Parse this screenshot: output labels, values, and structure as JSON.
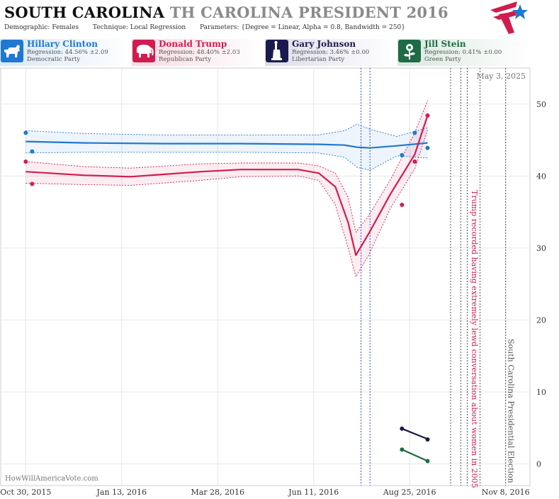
{
  "header": {
    "state": "SOUTH CAROLINA",
    "race": "TH CAROLINA PRESIDENT 2016",
    "demographic_label": "Demographic:",
    "demographic_value": "Females",
    "technique_label": "Technique:",
    "technique_value": "Local Regression",
    "parameters_label": "Parameters:",
    "parameters_value": "{Degree = Linear, Alpha = 0.8, Bandwidth = 250}"
  },
  "candidates": [
    {
      "name": "Hillary Clinton",
      "regression": "Regression: 44.56% ±2.09",
      "party": "Democratic Party",
      "color": "#1f78d1",
      "icon": "donkey-icon"
    },
    {
      "name": "Donald Trump",
      "regression": "Regression: 48.40% ±2.03",
      "party": "Republican Party",
      "color": "#d11d4e",
      "icon": "elephant-icon"
    },
    {
      "name": "Gary Johnson",
      "regression": "Regression: 3.46% ±0.00",
      "party": "Libertarian Party",
      "color": "#1a1a4e",
      "icon": "statue-of-liberty-icon"
    },
    {
      "name": "Jill Stein",
      "regression": "Regression: 0.41% ±0.00",
      "party": "Green Party",
      "color": "#1e6b45",
      "icon": "flower-icon"
    }
  ],
  "chart_data": {
    "type": "line",
    "date_label": "May 3, 2025",
    "watermark": "HowWillAmericaVote.com",
    "x_ticks": [
      "Oct 30, 2015",
      "Jan 13, 2016",
      "Mar 28, 2016",
      "Jun 11, 2016",
      "Aug 25, 2016",
      "Nov 8, 2016"
    ],
    "y_ticks": [
      0,
      10,
      20,
      30,
      40,
      50
    ],
    "x_range": [
      "2015-10-11",
      "2016-11-27"
    ],
    "y_range": [
      -3,
      55
    ],
    "grid": true,
    "annotations": [
      {
        "date": "2016-10-07",
        "label": "Trump recorded having extremely lewd conversation about women in 2005"
      },
      {
        "date": "2016-11-08",
        "label": "South Carolina Presidential Election"
      }
    ],
    "event_lines": [
      "2016-07-18",
      "2016-07-25",
      "2016-09-26",
      "2016-10-04",
      "2016-10-09",
      "2016-10-19",
      "2016-11-08"
    ],
    "series": [
      {
        "name": "Hillary Clinton",
        "color": "#1f78d1",
        "points": [
          [
            "2015-10-30",
            46.0
          ],
          [
            "2015-11-04",
            43.4
          ],
          [
            "2016-08-19",
            42.9
          ],
          [
            "2016-08-29",
            46.0
          ],
          [
            "2016-09-08",
            43.9
          ]
        ],
        "fit": [
          [
            "2015-10-30",
            44.8
          ],
          [
            "2015-12-15",
            44.6
          ],
          [
            "2016-02-15",
            44.5
          ],
          [
            "2016-04-15",
            44.5
          ],
          [
            "2016-06-15",
            44.4
          ],
          [
            "2016-07-05",
            44.3
          ],
          [
            "2016-07-15",
            44.0
          ],
          [
            "2016-07-25",
            43.9
          ],
          [
            "2016-08-15",
            44.2
          ],
          [
            "2016-09-08",
            44.6
          ]
        ],
        "fit_upper": [
          [
            "2015-10-30",
            46.3
          ],
          [
            "2015-12-15",
            45.9
          ],
          [
            "2016-02-15",
            45.7
          ],
          [
            "2016-04-15",
            45.7
          ],
          [
            "2016-06-15",
            45.7
          ],
          [
            "2016-07-05",
            46.3
          ],
          [
            "2016-07-15",
            47.2
          ],
          [
            "2016-07-25",
            46.5
          ],
          [
            "2016-08-15",
            45.5
          ],
          [
            "2016-09-08",
            46.7
          ]
        ],
        "fit_lower": [
          [
            "2015-10-30",
            43.2
          ],
          [
            "2015-12-15",
            43.3
          ],
          [
            "2016-02-15",
            43.3
          ],
          [
            "2016-04-15",
            43.3
          ],
          [
            "2016-06-15",
            43.2
          ],
          [
            "2016-07-05",
            42.6
          ],
          [
            "2016-07-15",
            41.2
          ],
          [
            "2016-07-25",
            40.8
          ],
          [
            "2016-08-15",
            42.8
          ],
          [
            "2016-09-08",
            42.5
          ]
        ]
      },
      {
        "name": "Donald Trump",
        "color": "#d11d4e",
        "points": [
          [
            "2015-10-30",
            42.0
          ],
          [
            "2015-11-04",
            38.9
          ],
          [
            "2016-08-19",
            36.0
          ],
          [
            "2016-08-29",
            42.0
          ],
          [
            "2016-09-08",
            48.4
          ]
        ],
        "fit": [
          [
            "2015-10-30",
            40.6
          ],
          [
            "2015-12-15",
            40.1
          ],
          [
            "2016-01-20",
            39.9
          ],
          [
            "2016-03-15",
            40.6
          ],
          [
            "2016-04-15",
            40.9
          ],
          [
            "2016-05-30",
            40.9
          ],
          [
            "2016-06-15",
            40.4
          ],
          [
            "2016-06-28",
            38.5
          ],
          [
            "2016-07-08",
            33.5
          ],
          [
            "2016-07-14",
            29.0
          ],
          [
            "2016-07-24",
            32.0
          ],
          [
            "2016-08-10",
            37.5
          ],
          [
            "2016-08-29",
            43.0
          ],
          [
            "2016-09-08",
            48.4
          ]
        ],
        "fit_upper": [
          [
            "2015-10-30",
            42.0
          ],
          [
            "2015-12-15",
            41.3
          ],
          [
            "2016-01-20",
            41.1
          ],
          [
            "2016-03-15",
            41.7
          ],
          [
            "2016-04-15",
            41.8
          ],
          [
            "2016-05-30",
            41.8
          ],
          [
            "2016-06-15",
            41.4
          ],
          [
            "2016-06-28",
            40.4
          ],
          [
            "2016-07-08",
            37.0
          ],
          [
            "2016-07-14",
            32.2
          ],
          [
            "2016-07-24",
            34.5
          ],
          [
            "2016-08-10",
            39.5
          ],
          [
            "2016-08-29",
            46.0
          ],
          [
            "2016-09-08",
            50.5
          ]
        ],
        "fit_lower": [
          [
            "2015-10-30",
            39.0
          ],
          [
            "2015-12-15",
            38.8
          ],
          [
            "2016-01-20",
            38.7
          ],
          [
            "2016-03-15",
            39.4
          ],
          [
            "2016-04-15",
            39.9
          ],
          [
            "2016-05-30",
            40.0
          ],
          [
            "2016-06-15",
            39.4
          ],
          [
            "2016-06-28",
            36.0
          ],
          [
            "2016-07-08",
            30.0
          ],
          [
            "2016-07-14",
            26.0
          ],
          [
            "2016-07-24",
            29.0
          ],
          [
            "2016-08-10",
            35.5
          ],
          [
            "2016-08-29",
            41.0
          ],
          [
            "2016-09-08",
            46.4
          ]
        ]
      },
      {
        "name": "Gary Johnson",
        "color": "#1a1a4e",
        "points": [
          [
            "2016-08-19",
            4.9
          ],
          [
            "2016-09-08",
            3.4
          ]
        ],
        "fit": [
          [
            "2016-08-19",
            4.9
          ],
          [
            "2016-09-08",
            3.46
          ]
        ]
      },
      {
        "name": "Jill Stein",
        "color": "#1e6b45",
        "points": [
          [
            "2016-08-19",
            2.0
          ],
          [
            "2016-09-08",
            0.4
          ]
        ],
        "fit": [
          [
            "2016-08-19",
            2.0
          ],
          [
            "2016-09-08",
            0.41
          ]
        ]
      }
    ]
  }
}
